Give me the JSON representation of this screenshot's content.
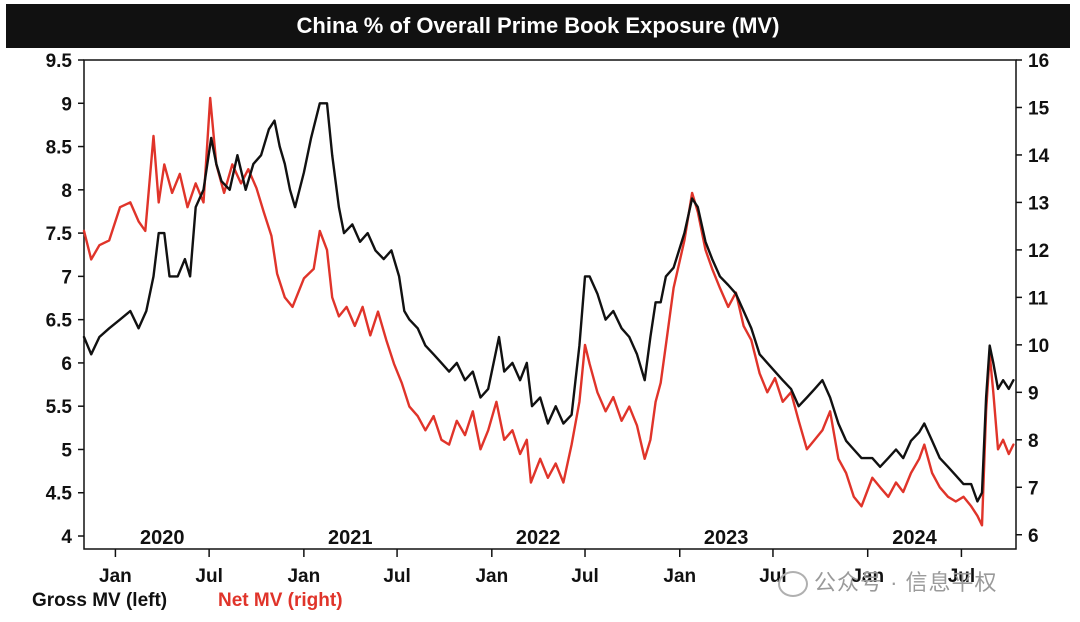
{
  "colors": {
    "gross": "#111111",
    "net": "#e0342a",
    "title_bg": "#111111"
  },
  "watermark": {
    "icon": "wechat-icon",
    "text": "公众号 · 信息平权"
  },
  "chart_data": {
    "type": "line",
    "title": "China % of Overall Prime Book Exposure (MV)",
    "x_range": [
      "2019-11-01",
      "2024-10-15"
    ],
    "year_labels": [
      {
        "label": "2020",
        "date": "2020-04-01"
      },
      {
        "label": "2021",
        "date": "2021-04-01"
      },
      {
        "label": "2022",
        "date": "2022-04-01"
      },
      {
        "label": "2023",
        "date": "2023-04-01"
      },
      {
        "label": "2024",
        "date": "2024-04-01"
      }
    ],
    "x_ticks": [
      {
        "label": "Jan",
        "date": "2020-01-01"
      },
      {
        "label": "Jul",
        "date": "2020-07-01"
      },
      {
        "label": "Jan",
        "date": "2021-01-01"
      },
      {
        "label": "Jul",
        "date": "2021-07-01"
      },
      {
        "label": "Jan",
        "date": "2022-01-01"
      },
      {
        "label": "Jul",
        "date": "2022-07-01"
      },
      {
        "label": "Jan",
        "date": "2023-01-01"
      },
      {
        "label": "Jul",
        "date": "2023-07-01"
      },
      {
        "label": "Jan",
        "date": "2024-01-01"
      },
      {
        "label": "Jul",
        "date": "2024-07-01"
      }
    ],
    "y_left": {
      "min": 3.85,
      "max": 9.5,
      "ticks": [
        "4",
        "4.5",
        "5",
        "5.5",
        "6",
        "6.5",
        "7",
        "7.5",
        "8",
        "8.5",
        "9",
        "9.5"
      ]
    },
    "y_right": {
      "min": 5.7,
      "max": 16.0,
      "ticks": [
        "6",
        "7",
        "8",
        "9",
        "10",
        "11",
        "12",
        "13",
        "14",
        "15",
        "16"
      ]
    },
    "grid": false,
    "legend": {
      "position": "bottom-left"
    },
    "series": [
      {
        "name": "Gross MV (left)",
        "axis": "left",
        "color": "#111111",
        "points": [
          [
            "2019-11-01",
            6.3
          ],
          [
            "2019-11-15",
            6.1
          ],
          [
            "2019-12-01",
            6.3
          ],
          [
            "2019-12-20",
            6.4
          ],
          [
            "2020-01-10",
            6.5
          ],
          [
            "2020-01-30",
            6.6
          ],
          [
            "2020-02-15",
            6.4
          ],
          [
            "2020-03-01",
            6.6
          ],
          [
            "2020-03-15",
            7.0
          ],
          [
            "2020-03-25",
            7.5
          ],
          [
            "2020-04-05",
            7.5
          ],
          [
            "2020-04-15",
            7.0
          ],
          [
            "2020-05-01",
            7.0
          ],
          [
            "2020-05-15",
            7.2
          ],
          [
            "2020-05-25",
            7.0
          ],
          [
            "2020-06-05",
            7.8
          ],
          [
            "2020-06-20",
            8.0
          ],
          [
            "2020-07-05",
            8.6
          ],
          [
            "2020-07-15",
            8.3
          ],
          [
            "2020-07-25",
            8.1
          ],
          [
            "2020-08-10",
            8.0
          ],
          [
            "2020-08-25",
            8.4
          ],
          [
            "2020-09-10",
            8.0
          ],
          [
            "2020-09-25",
            8.3
          ],
          [
            "2020-10-10",
            8.4
          ],
          [
            "2020-10-25",
            8.7
          ],
          [
            "2020-11-05",
            8.8
          ],
          [
            "2020-11-15",
            8.5
          ],
          [
            "2020-11-25",
            8.3
          ],
          [
            "2020-12-05",
            8.0
          ],
          [
            "2020-12-15",
            7.8
          ],
          [
            "2021-01-01",
            8.2
          ],
          [
            "2021-01-15",
            8.6
          ],
          [
            "2021-02-01",
            9.0
          ],
          [
            "2021-02-15",
            9.0
          ],
          [
            "2021-02-25",
            8.4
          ],
          [
            "2021-03-10",
            7.8
          ],
          [
            "2021-03-20",
            7.5
          ],
          [
            "2021-04-05",
            7.6
          ],
          [
            "2021-04-20",
            7.4
          ],
          [
            "2021-05-05",
            7.5
          ],
          [
            "2021-05-20",
            7.3
          ],
          [
            "2021-06-05",
            7.2
          ],
          [
            "2021-06-20",
            7.3
          ],
          [
            "2021-07-05",
            7.0
          ],
          [
            "2021-07-15",
            6.6
          ],
          [
            "2021-07-25",
            6.5
          ],
          [
            "2021-08-10",
            6.4
          ],
          [
            "2021-08-25",
            6.2
          ],
          [
            "2021-09-10",
            6.1
          ],
          [
            "2021-09-25",
            6.0
          ],
          [
            "2021-10-10",
            5.9
          ],
          [
            "2021-10-25",
            6.0
          ],
          [
            "2021-11-10",
            5.8
          ],
          [
            "2021-11-25",
            5.9
          ],
          [
            "2021-12-10",
            5.6
          ],
          [
            "2021-12-25",
            5.7
          ],
          [
            "2022-01-15",
            6.3
          ],
          [
            "2022-01-25",
            5.9
          ],
          [
            "2022-02-10",
            6.0
          ],
          [
            "2022-02-25",
            5.8
          ],
          [
            "2022-03-10",
            6.0
          ],
          [
            "2022-03-20",
            5.5
          ],
          [
            "2022-04-05",
            5.6
          ],
          [
            "2022-04-20",
            5.3
          ],
          [
            "2022-05-05",
            5.5
          ],
          [
            "2022-05-20",
            5.3
          ],
          [
            "2022-06-05",
            5.4
          ],
          [
            "2022-06-20",
            6.2
          ],
          [
            "2022-07-01",
            7.0
          ],
          [
            "2022-07-10",
            7.0
          ],
          [
            "2022-07-25",
            6.8
          ],
          [
            "2022-08-10",
            6.5
          ],
          [
            "2022-08-25",
            6.6
          ],
          [
            "2022-09-10",
            6.4
          ],
          [
            "2022-09-25",
            6.3
          ],
          [
            "2022-10-10",
            6.1
          ],
          [
            "2022-10-25",
            5.8
          ],
          [
            "2022-11-05",
            6.3
          ],
          [
            "2022-11-15",
            6.7
          ],
          [
            "2022-11-25",
            6.7
          ],
          [
            "2022-12-05",
            7.0
          ],
          [
            "2022-12-20",
            7.1
          ],
          [
            "2023-01-10",
            7.5
          ],
          [
            "2023-01-25",
            7.9
          ],
          [
            "2023-02-05",
            7.8
          ],
          [
            "2023-02-20",
            7.4
          ],
          [
            "2023-03-05",
            7.2
          ],
          [
            "2023-03-20",
            7.0
          ],
          [
            "2023-04-05",
            6.9
          ],
          [
            "2023-04-20",
            6.8
          ],
          [
            "2023-05-05",
            6.6
          ],
          [
            "2023-05-20",
            6.4
          ],
          [
            "2023-06-05",
            6.1
          ],
          [
            "2023-06-20",
            6.0
          ],
          [
            "2023-07-05",
            5.9
          ],
          [
            "2023-07-20",
            5.8
          ],
          [
            "2023-08-05",
            5.7
          ],
          [
            "2023-08-20",
            5.5
          ],
          [
            "2023-09-05",
            5.6
          ],
          [
            "2023-09-20",
            5.7
          ],
          [
            "2023-10-05",
            5.8
          ],
          [
            "2023-10-20",
            5.6
          ],
          [
            "2023-11-05",
            5.3
          ],
          [
            "2023-11-20",
            5.1
          ],
          [
            "2023-12-05",
            5.0
          ],
          [
            "2023-12-20",
            4.9
          ],
          [
            "2024-01-10",
            4.9
          ],
          [
            "2024-01-25",
            4.8
          ],
          [
            "2024-02-10",
            4.9
          ],
          [
            "2024-02-25",
            5.0
          ],
          [
            "2024-03-10",
            4.9
          ],
          [
            "2024-03-25",
            5.1
          ],
          [
            "2024-04-10",
            5.2
          ],
          [
            "2024-04-20",
            5.3
          ],
          [
            "2024-05-05",
            5.1
          ],
          [
            "2024-05-20",
            4.9
          ],
          [
            "2024-06-05",
            4.8
          ],
          [
            "2024-06-20",
            4.7
          ],
          [
            "2024-07-05",
            4.6
          ],
          [
            "2024-07-20",
            4.6
          ],
          [
            "2024-08-01",
            4.4
          ],
          [
            "2024-08-10",
            4.5
          ],
          [
            "2024-08-18",
            5.6
          ],
          [
            "2024-08-25",
            6.2
          ],
          [
            "2024-09-01",
            6.0
          ],
          [
            "2024-09-10",
            5.7
          ],
          [
            "2024-09-20",
            5.8
          ],
          [
            "2024-10-01",
            5.7
          ],
          [
            "2024-10-10",
            5.8
          ]
        ]
      },
      {
        "name": "Net MV (right)",
        "axis": "right",
        "color": "#e0342a",
        "points": [
          [
            "2019-11-01",
            12.4
          ],
          [
            "2019-11-15",
            11.8
          ],
          [
            "2019-12-01",
            12.1
          ],
          [
            "2019-12-20",
            12.2
          ],
          [
            "2020-01-10",
            12.9
          ],
          [
            "2020-01-30",
            13.0
          ],
          [
            "2020-02-15",
            12.6
          ],
          [
            "2020-02-28",
            12.4
          ],
          [
            "2020-03-15",
            14.4
          ],
          [
            "2020-03-25",
            13.0
          ],
          [
            "2020-04-05",
            13.8
          ],
          [
            "2020-04-20",
            13.2
          ],
          [
            "2020-05-05",
            13.6
          ],
          [
            "2020-05-20",
            12.9
          ],
          [
            "2020-06-05",
            13.4
          ],
          [
            "2020-06-20",
            13.0
          ],
          [
            "2020-07-03",
            15.2
          ],
          [
            "2020-07-15",
            13.8
          ],
          [
            "2020-07-30",
            13.2
          ],
          [
            "2020-08-15",
            13.8
          ],
          [
            "2020-09-01",
            13.4
          ],
          [
            "2020-09-15",
            13.7
          ],
          [
            "2020-10-01",
            13.3
          ],
          [
            "2020-10-15",
            12.8
          ],
          [
            "2020-10-30",
            12.3
          ],
          [
            "2020-11-10",
            11.5
          ],
          [
            "2020-11-25",
            11.0
          ],
          [
            "2020-12-10",
            10.8
          ],
          [
            "2021-01-01",
            11.4
          ],
          [
            "2021-01-20",
            11.6
          ],
          [
            "2021-02-01",
            12.4
          ],
          [
            "2021-02-15",
            12.0
          ],
          [
            "2021-02-25",
            11.0
          ],
          [
            "2021-03-10",
            10.6
          ],
          [
            "2021-03-25",
            10.8
          ],
          [
            "2021-04-10",
            10.4
          ],
          [
            "2021-04-25",
            10.8
          ],
          [
            "2021-05-10",
            10.2
          ],
          [
            "2021-05-25",
            10.7
          ],
          [
            "2021-06-10",
            10.1
          ],
          [
            "2021-06-25",
            9.6
          ],
          [
            "2021-07-10",
            9.2
          ],
          [
            "2021-07-25",
            8.7
          ],
          [
            "2021-08-10",
            8.5
          ],
          [
            "2021-08-25",
            8.2
          ],
          [
            "2021-09-10",
            8.5
          ],
          [
            "2021-09-25",
            8.0
          ],
          [
            "2021-10-10",
            7.9
          ],
          [
            "2021-10-25",
            8.4
          ],
          [
            "2021-11-10",
            8.1
          ],
          [
            "2021-11-25",
            8.6
          ],
          [
            "2021-12-10",
            7.8
          ],
          [
            "2021-12-25",
            8.2
          ],
          [
            "2022-01-10",
            8.8
          ],
          [
            "2022-01-25",
            8.0
          ],
          [
            "2022-02-10",
            8.2
          ],
          [
            "2022-02-25",
            7.7
          ],
          [
            "2022-03-10",
            8.0
          ],
          [
            "2022-03-18",
            7.1
          ],
          [
            "2022-04-05",
            7.6
          ],
          [
            "2022-04-20",
            7.2
          ],
          [
            "2022-05-05",
            7.5
          ],
          [
            "2022-05-20",
            7.1
          ],
          [
            "2022-06-05",
            7.9
          ],
          [
            "2022-06-20",
            8.8
          ],
          [
            "2022-07-01",
            10.0
          ],
          [
            "2022-07-10",
            9.6
          ],
          [
            "2022-07-25",
            9.0
          ],
          [
            "2022-08-10",
            8.6
          ],
          [
            "2022-08-25",
            8.9
          ],
          [
            "2022-09-10",
            8.4
          ],
          [
            "2022-09-25",
            8.7
          ],
          [
            "2022-10-10",
            8.3
          ],
          [
            "2022-10-25",
            7.6
          ],
          [
            "2022-11-05",
            8.0
          ],
          [
            "2022-11-15",
            8.8
          ],
          [
            "2022-11-25",
            9.2
          ],
          [
            "2022-12-05",
            10.0
          ],
          [
            "2022-12-20",
            11.2
          ],
          [
            "2023-01-10",
            12.2
          ],
          [
            "2023-01-25",
            13.2
          ],
          [
            "2023-02-05",
            12.8
          ],
          [
            "2023-02-20",
            12.0
          ],
          [
            "2023-03-05",
            11.6
          ],
          [
            "2023-03-20",
            11.2
          ],
          [
            "2023-04-05",
            10.8
          ],
          [
            "2023-04-20",
            11.1
          ],
          [
            "2023-05-05",
            10.4
          ],
          [
            "2023-05-20",
            10.1
          ],
          [
            "2023-06-05",
            9.4
          ],
          [
            "2023-06-20",
            9.0
          ],
          [
            "2023-07-05",
            9.3
          ],
          [
            "2023-07-20",
            8.8
          ],
          [
            "2023-08-05",
            9.0
          ],
          [
            "2023-08-20",
            8.4
          ],
          [
            "2023-09-05",
            7.8
          ],
          [
            "2023-09-20",
            8.0
          ],
          [
            "2023-10-05",
            8.2
          ],
          [
            "2023-10-20",
            8.6
          ],
          [
            "2023-11-05",
            7.6
          ],
          [
            "2023-11-20",
            7.3
          ],
          [
            "2023-12-05",
            6.8
          ],
          [
            "2023-12-20",
            6.6
          ],
          [
            "2024-01-10",
            7.2
          ],
          [
            "2024-01-25",
            7.0
          ],
          [
            "2024-02-10",
            6.8
          ],
          [
            "2024-02-25",
            7.1
          ],
          [
            "2024-03-10",
            6.9
          ],
          [
            "2024-03-25",
            7.3
          ],
          [
            "2024-04-10",
            7.6
          ],
          [
            "2024-04-20",
            7.9
          ],
          [
            "2024-05-05",
            7.3
          ],
          [
            "2024-05-20",
            7.0
          ],
          [
            "2024-06-05",
            6.8
          ],
          [
            "2024-06-20",
            6.7
          ],
          [
            "2024-07-05",
            6.8
          ],
          [
            "2024-07-20",
            6.6
          ],
          [
            "2024-08-01",
            6.4
          ],
          [
            "2024-08-10",
            6.2
          ],
          [
            "2024-08-18",
            8.6
          ],
          [
            "2024-08-25",
            9.8
          ],
          [
            "2024-09-01",
            9.0
          ],
          [
            "2024-09-10",
            7.8
          ],
          [
            "2024-09-20",
            8.0
          ],
          [
            "2024-10-01",
            7.7
          ],
          [
            "2024-10-10",
            7.9
          ]
        ]
      }
    ]
  }
}
